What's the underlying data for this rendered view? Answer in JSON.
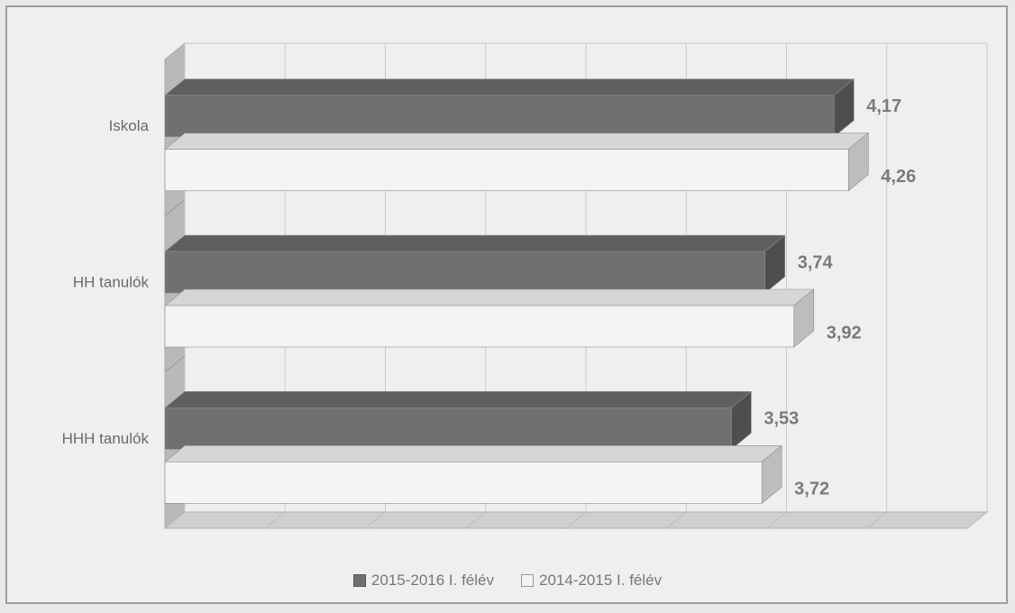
{
  "colors": {
    "series_dark": "#707070",
    "series_dark_top": "#5f5f5f",
    "series_dark_side": "#4e4e4e",
    "series_light": "#f4f4f4",
    "series_light_top": "#d6d6d6",
    "series_light_side": "#bdbdbd",
    "grid": "#c9c9c9",
    "wall": "#b9b9b9",
    "floor": "#cfcfcf"
  },
  "chart_data": {
    "type": "bar",
    "orientation": "horizontal",
    "style": "3d",
    "categories": [
      "Iskola",
      "HH tanulók",
      "HHH tanulók"
    ],
    "series": [
      {
        "name": "2015-2016 I. félév",
        "values": [
          4.17,
          3.74,
          3.53
        ],
        "labels": [
          "4,17",
          "3,74",
          "3,53"
        ]
      },
      {
        "name": "2014-2015 I. félév",
        "values": [
          4.26,
          3.92,
          3.72
        ],
        "labels": [
          "4,26",
          "3,92",
          "3,72"
        ]
      }
    ],
    "xlim": [
      0,
      5
    ],
    "grid": true,
    "legend_position": "bottom",
    "title": "",
    "xlabel": "",
    "ylabel": ""
  }
}
